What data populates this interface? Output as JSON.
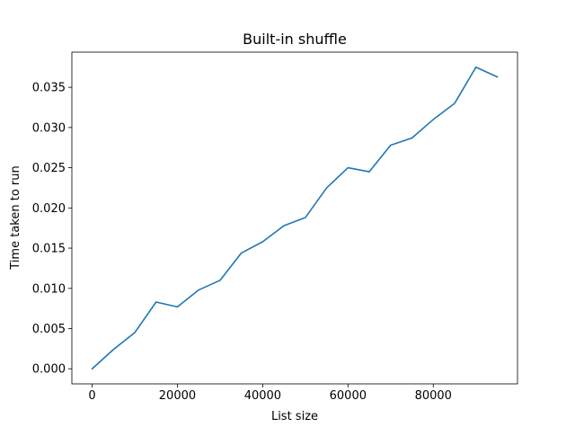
{
  "chart_data": {
    "type": "line",
    "title": "Built-in shuffle",
    "xlabel": "List size",
    "ylabel": "Time taken to run",
    "xlim": [
      -4750,
      99750
    ],
    "ylim": [
      -0.001875,
      0.039375
    ],
    "xticks": [
      0,
      20000,
      40000,
      60000,
      80000
    ],
    "xtick_labels": [
      "0",
      "20000",
      "40000",
      "60000",
      "80000"
    ],
    "yticks": [
      0.0,
      0.005,
      0.01,
      0.015,
      0.02,
      0.025,
      0.03,
      0.035
    ],
    "ytick_labels": [
      "0.000",
      "0.005",
      "0.010",
      "0.015",
      "0.020",
      "0.025",
      "0.030",
      "0.035"
    ],
    "grid": false,
    "series": [
      {
        "color": "#1f77b4",
        "x": [
          0,
          5000,
          10000,
          15000,
          20000,
          25000,
          30000,
          35000,
          40000,
          45000,
          50000,
          55000,
          60000,
          65000,
          70000,
          75000,
          80000,
          85000,
          90000,
          95000
        ],
        "y": [
          0.0,
          0.0024,
          0.0045,
          0.0083,
          0.0077,
          0.0098,
          0.011,
          0.0144,
          0.0158,
          0.0178,
          0.0188,
          0.0225,
          0.025,
          0.0245,
          0.0278,
          0.0287,
          0.031,
          0.033,
          0.0375,
          0.0363
        ]
      }
    ]
  }
}
